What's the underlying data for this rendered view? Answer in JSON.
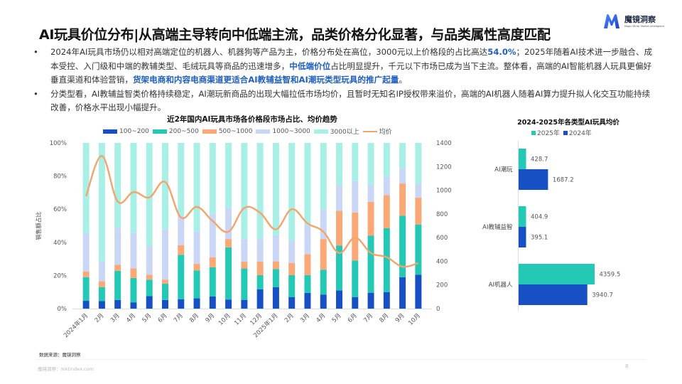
{
  "header": {
    "title": "AI玩具价位分布|从高端主导转向中低端主流，品类价格分化显著，与品类属性高度匹配",
    "logo": {
      "name": "魔镜洞察",
      "subtitle": "Magic Mirror Market Intelligence",
      "color": "#2b6cf0"
    }
  },
  "bullets": [
    {
      "parts": [
        {
          "text": "2024年AI玩具市场仍以相对高端定位的机器人、机器狗等产品为主，价格分布处在高位，3000元以上价格段的占比高达",
          "hl": false
        },
        {
          "text": "54.0%",
          "hl": true
        },
        {
          "text": "；2025年随着AI技术进一步融合、成本受控、入门级和中端的教辅类型、毛绒玩具等商品的迅速增多，",
          "hl": false
        },
        {
          "text": "中低端价位",
          "hl": true
        },
        {
          "text": "占比明显提升，千元以下市场已成为当下主流。整体看，高端的AI智能机器人玩具更偏好垂直渠道和体验营销，",
          "hl": false
        },
        {
          "text": "货架电商和内容电商渠道更适合AI教辅益智和AI潮玩类型玩具的推广起量",
          "hl": true
        },
        {
          "text": "。",
          "hl": false
        }
      ]
    },
    {
      "parts": [
        {
          "text": "分类型看，AI教辅益智类价格持续稳定，AI潮玩新商品的出现大幅拉低市场均价，且暂时无知名IP授权带来溢价，高端的AI机器人随着AI算力提升拟人化交互功能持续改善，价格水平出现小幅提升。",
          "hl": false
        }
      ]
    }
  ],
  "chart_data": [
    {
      "type": "bar",
      "subtype": "stacked-percent-with-line",
      "title": "近2年国内AI玩具市场各价格段市场占比、均价趋势",
      "ylabel": "销售额占比",
      "y2label": "",
      "ylim": [
        0,
        100
      ],
      "y2lim": [
        0,
        1400
      ],
      "yticks": [
        "0%",
        "20%",
        "40%",
        "60%",
        "80%",
        "100%"
      ],
      "y2ticks": [
        "0",
        "200",
        "400",
        "600",
        "800",
        "1000",
        "1200",
        "1400"
      ],
      "legend_position": "top",
      "categories": [
        "2024年1月",
        "2月",
        "3月",
        "4月",
        "5月",
        "6月",
        "7月",
        "8月",
        "9月",
        "10月",
        "11月",
        "12月",
        "2025年1月",
        "2月",
        "3月",
        "4月",
        "5月",
        "6月",
        "7月",
        "8月",
        "9月",
        "10月"
      ],
      "series": [
        {
          "name": "100~200",
          "color": "#1650c4",
          "values": [
            4.7,
            4.5,
            5.2,
            3.8,
            7.5,
            5.2,
            5.7,
            6.2,
            7.4,
            5.5,
            5.3,
            11.7,
            13.0,
            7.0,
            9.5,
            8.5,
            11.0,
            7.0,
            9.6,
            10.0,
            19.0,
            20.5
          ]
        },
        {
          "name": "200~500",
          "color": "#24c9b5",
          "values": [
            14.3,
            8.5,
            17.6,
            14.7,
            10.0,
            9.8,
            26.8,
            16.8,
            17.6,
            31.5,
            19.0,
            8.5,
            10.9,
            13.2,
            10.7,
            15.0,
            27.0,
            22.0,
            34.4,
            38.5,
            37.0,
            30.3
          ]
        },
        {
          "name": "500~1000",
          "color": "#fba877",
          "values": [
            3.3,
            3.5,
            3.7,
            5.8,
            3.0,
            2.5,
            5.8,
            4.0,
            6.0,
            5.0,
            4.0,
            8.1,
            4.6,
            7.3,
            12.6,
            18.5,
            21.0,
            29.0,
            20.5,
            20.0,
            19.5,
            16.2
          ]
        },
        {
          "name": "1000~3000",
          "color": "#c9d6f5",
          "values": [
            23.2,
            12.0,
            22.3,
            21.5,
            17.3,
            30.3,
            17.7,
            19.5,
            26.0,
            19.0,
            13.7,
            13.7,
            15.5,
            13.5,
            17.7,
            18.0,
            15.5,
            19.0,
            10.5,
            11.0,
            9.0,
            8.5
          ]
        },
        {
          "name": "3000以上",
          "color": "#a8efe6",
          "values": [
            54.5,
            71.5,
            51.2,
            54.2,
            62.2,
            52.2,
            44.0,
            53.5,
            43.0,
            39.0,
            58.0,
            58.0,
            56.0,
            59.0,
            49.5,
            40.0,
            25.5,
            23.0,
            25.0,
            20.5,
            15.5,
            24.5
          ]
        },
        {
          "name": "均价",
          "type": "line",
          "axis": "right",
          "color": "#f4a46a",
          "values": [
            950,
            1290,
            905,
            985,
            940,
            1070,
            770,
            860,
            740,
            650,
            850,
            810,
            670,
            840,
            720,
            650,
            470,
            600,
            470,
            435,
            355,
            385
          ]
        }
      ]
    },
    {
      "type": "bar",
      "subtype": "horizontal-grouped",
      "title": "2024-2025年各类型AI玩具均价",
      "legend_position": "top",
      "categories": [
        "AI潮玩",
        "AI教辅益智",
        "AI机器人"
      ],
      "series": [
        {
          "name": "2025年",
          "color": "#24c9b5",
          "values": [
            428.7,
            404.9,
            4359.5
          ]
        },
        {
          "name": "2024年",
          "color": "#1650c4",
          "values": [
            1687.2,
            395.1,
            3940.7
          ]
        }
      ],
      "xlim": [
        0,
        5600
      ]
    }
  ],
  "footer": {
    "source": "数据来源：魔镜洞察",
    "site": "魔镜洞察：mktindex.com",
    "page": "8"
  }
}
